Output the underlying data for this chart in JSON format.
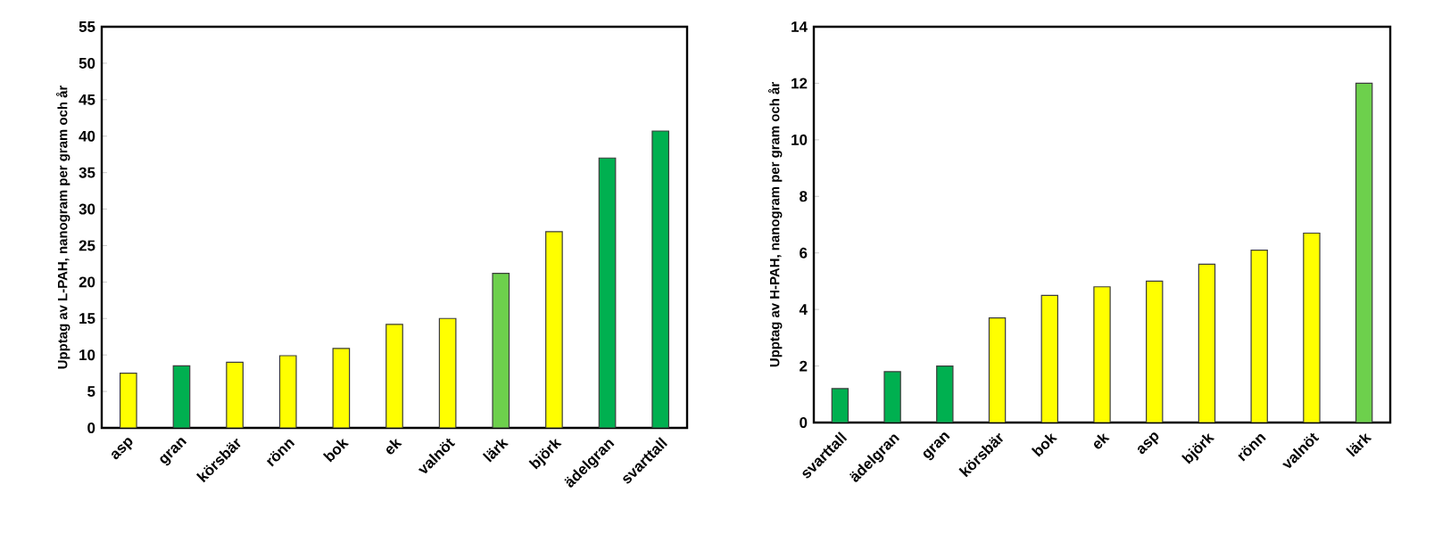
{
  "chart_data": [
    {
      "type": "bar",
      "ylabel": "Upptag av L-PAH, nanogram per gram och år",
      "categories": [
        "asp",
        "gran",
        "körsbär",
        "rönn",
        "bok",
        "ek",
        "valnöt",
        "lärk",
        "björk",
        "ädelgran",
        "svarttall"
      ],
      "values": [
        7.5,
        8.5,
        9,
        9.9,
        10.9,
        14.2,
        15,
        21.2,
        26.9,
        37,
        40.7
      ],
      "colors": [
        "#ffff00",
        "#00b050",
        "#ffff00",
        "#ffff00",
        "#ffff00",
        "#ffff00",
        "#ffff00",
        "#6dd04c",
        "#ffff00",
        "#00b050",
        "#00b050"
      ],
      "ylim": [
        0,
        55
      ],
      "yticks": [
        0,
        5,
        10,
        15,
        20,
        25,
        30,
        35,
        40,
        45,
        50,
        55
      ]
    },
    {
      "type": "bar",
      "ylabel": "Upptag av H-PAH, nanogram per gram och år",
      "categories": [
        "svarttall",
        "ädelgran",
        "gran",
        "körsbär",
        "bok",
        "ek",
        "asp",
        "björk",
        "rönn",
        "valnöt",
        "lärk"
      ],
      "values": [
        1.2,
        1.8,
        2.0,
        3.7,
        4.5,
        4.8,
        5.0,
        5.6,
        6.1,
        6.7,
        12.0
      ],
      "colors": [
        "#00b050",
        "#00b050",
        "#00b050",
        "#ffff00",
        "#ffff00",
        "#ffff00",
        "#ffff00",
        "#ffff00",
        "#ffff00",
        "#ffff00",
        "#6dd04c"
      ],
      "ylim": [
        0,
        14
      ],
      "yticks": [
        0,
        2,
        4,
        6,
        8,
        10,
        12,
        14
      ]
    }
  ]
}
